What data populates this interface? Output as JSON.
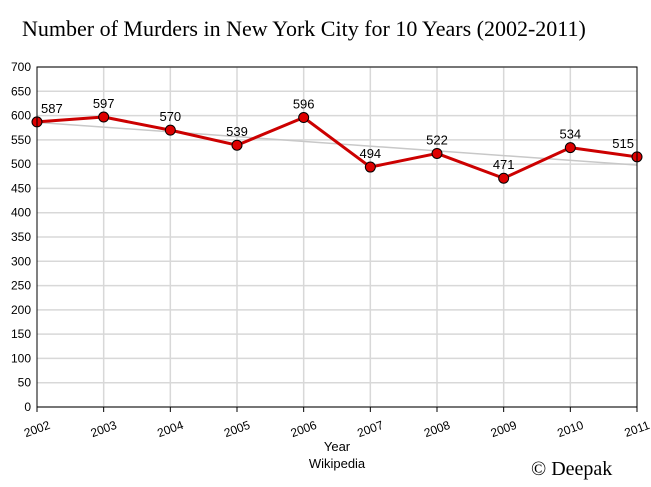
{
  "chart_data": {
    "type": "line",
    "title": "Number of Murders in New York City for 10 Years (2002-2011)",
    "xlabel": "Year",
    "subcaption": "Wikipedia",
    "credit": "© Deepak",
    "categories": [
      "2002",
      "2003",
      "2004",
      "2005",
      "2006",
      "2007",
      "2008",
      "2009",
      "2010",
      "2011"
    ],
    "series": [
      {
        "values": [
          587,
          597,
          570,
          539,
          596,
          494,
          522,
          471,
          534,
          515
        ],
        "color": "#cc0000",
        "marker_color": "#dd0000"
      }
    ],
    "trendline": {
      "start": 586,
      "end": 498,
      "color": "#c8c8c8"
    },
    "ylim": [
      0,
      700
    ],
    "yticks": [
      0,
      50,
      100,
      150,
      200,
      250,
      300,
      350,
      400,
      450,
      500,
      550,
      600,
      650,
      700
    ],
    "grid": true
  }
}
